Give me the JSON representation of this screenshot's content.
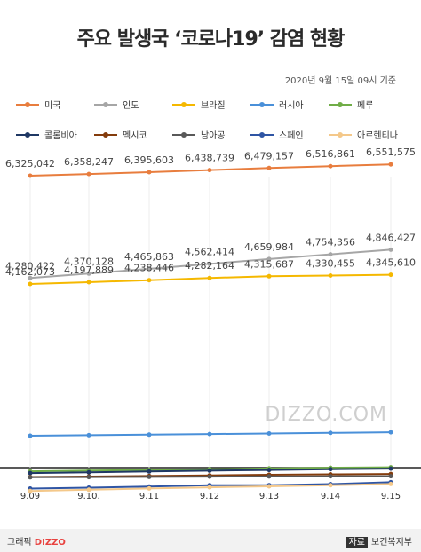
{
  "title": "주요 발생국 ‘코로나19’ 감염 현황",
  "date_note": "2020년 9월 15일 09시 기준",
  "watermark": "DIZZO.COM",
  "credit": {
    "prefix": "그래픽",
    "brand": "DIZZO"
  },
  "source": {
    "label": "자료",
    "name": "보건복지부"
  },
  "chart_data": {
    "type": "line",
    "categories": [
      "9.09",
      "9.10.",
      "9.11",
      "9.12",
      "9.13",
      "9.14",
      "9.15"
    ],
    "series": [
      {
        "name": "미국",
        "color": "#e87d3e",
        "values": [
          6325042,
          6358247,
          6395603,
          6438739,
          6479157,
          6516861,
          6551575
        ]
      },
      {
        "name": "인도",
        "color": "#a6a6a6",
        "values": [
          4280422,
          4370128,
          4465863,
          4562414,
          4659984,
          4754356,
          4846427
        ]
      },
      {
        "name": "브라질",
        "color": "#f5b800",
        "values": [
          4162073,
          4197889,
          4238446,
          4282164,
          4315687,
          4330455,
          4345610
        ]
      },
      {
        "name": "러시아",
        "color": "#4a90d9",
        "values": [
          1030690,
          1035789,
          1041007,
          1046370,
          1051874,
          1057362,
          1062811
        ]
      },
      {
        "name": "페루",
        "color": "#70ad47",
        "values": [
          696190,
          702776,
          710067,
          716670,
          722832,
          729619,
          733860
        ]
      },
      {
        "name": "콜롬비아",
        "color": "#1f3864",
        "values": [
          679513,
          686851,
          694664,
          702088,
          708964,
          716319,
          721892
        ]
      },
      {
        "name": "멕시코",
        "color": "#843c0c",
        "values": [
          642860,
          647507,
          652364,
          658299,
          663973,
          668381,
          671716
        ]
      },
      {
        "name": "남아공",
        "color": "#595959",
        "values": [
          640441,
          642431,
          644438,
          646398,
          648214,
          649793,
          650749
        ]
      },
      {
        "name": "스페인",
        "color": "#2f55a4",
        "values": [
          534513,
          543379,
          554143,
          566326,
          566326,
          576697,
          593730
        ]
      },
      {
        "name": "아르헨티나",
        "color": "#f4c88a",
        "values": [
          512293,
          524198,
          535705,
          546481,
          555537,
          565446,
          577338
        ]
      }
    ],
    "labels": [
      [
        "6,325,042",
        "6,358,247",
        "6,395,603",
        "6,438,739",
        "6,479,157",
        "6,516,861",
        "6,551,575"
      ],
      [
        "4,280,422",
        "4,370,128",
        "4,465,863",
        "4,562,414",
        "4,659,984",
        "4,754,356",
        "4,846,427"
      ],
      [
        "4,162,073",
        "4,197,889",
        "4,238,446",
        "4,282,164",
        "4,315,687",
        "4,330,455",
        "4,345,610"
      ]
    ]
  }
}
